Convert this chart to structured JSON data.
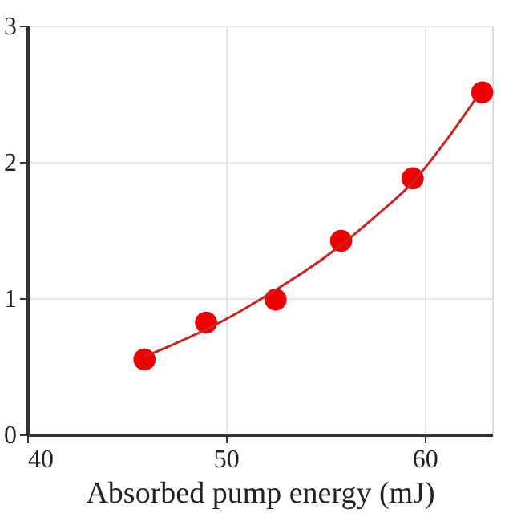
{
  "chart_data": {
    "type": "scatter",
    "xlabel": "Absorbed pump energy (mJ)",
    "xlim": [
      40,
      63.4
    ],
    "xticks": [
      40,
      50,
      60
    ],
    "ylim": [
      0,
      3
    ],
    "yticks": [
      0,
      1,
      2,
      3
    ],
    "grid": true,
    "series": [
      {
        "color": "#ee0000",
        "marker": "circle",
        "x": [
          45.9,
          49.0,
          52.5,
          55.8,
          59.4,
          62.9
        ],
        "values": [
          0.55,
          0.82,
          0.99,
          1.42,
          1.88,
          2.51
        ]
      },
      {
        "type": "line",
        "color": "#cc2222",
        "marker": "none",
        "line_style": "solid",
        "x": [
          45.9,
          47.5,
          49.0,
          50.8,
          52.5,
          54.2,
          55.8,
          57.6,
          59.4,
          61.0,
          62.6
        ],
        "values": [
          0.57,
          0.67,
          0.77,
          0.91,
          1.06,
          1.22,
          1.39,
          1.61,
          1.85,
          2.14,
          2.47
        ]
      }
    ]
  }
}
